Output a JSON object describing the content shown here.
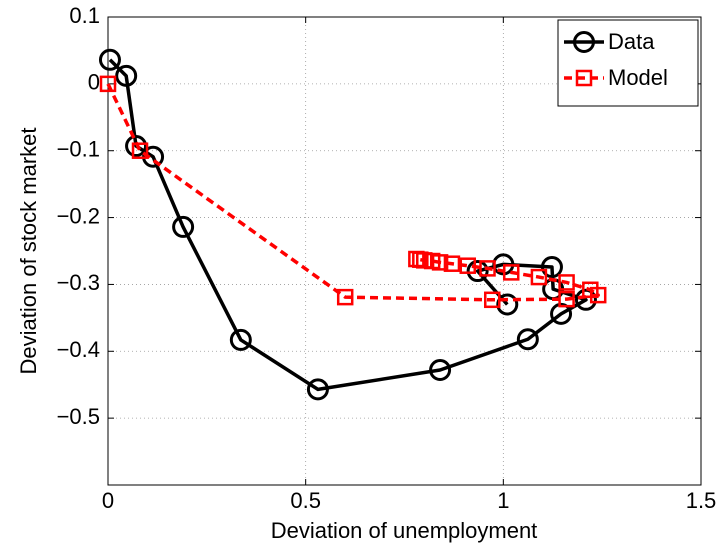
{
  "chart_data": {
    "type": "line",
    "xlabel": "Deviation of unemployment",
    "ylabel": "Deviation of stock market",
    "xlim": [
      0,
      1.5
    ],
    "xticks": [
      0,
      0.5,
      1,
      1.5
    ],
    "ylim": [
      -0.6,
      0.1
    ],
    "yticks": [
      0.1,
      0,
      {
        "value": -0.1,
        "label": "−0.1"
      },
      {
        "value": -0.2,
        "label": "−0.2"
      },
      {
        "value": -0.3,
        "label": "−0.3"
      },
      {
        "value": -0.4,
        "label": "−0.4"
      },
      {
        "value": -0.5,
        "label": "−0.5"
      }
    ],
    "grid": true,
    "legend": "upper right",
    "series": [
      {
        "name": "Data",
        "color": "#000000",
        "marker": "circle",
        "linestyle": "solid",
        "x": [
          0.005,
          0.046,
          0.071,
          0.114,
          0.19,
          0.336,
          0.531,
          0.84,
          1.062,
          1.146,
          1.209,
          1.126,
          1.123,
          1.0,
          0.935,
          1.01
        ],
        "values": [
          0.036,
          0.012,
          -0.093,
          -0.109,
          -0.214,
          -0.383,
          -0.457,
          -0.428,
          -0.382,
          -0.344,
          -0.323,
          -0.307,
          -0.274,
          -0.27,
          -0.28,
          -0.33
        ]
      },
      {
        "name": "Model",
        "color": "#ff0000",
        "marker": "square",
        "linestyle": "dashed",
        "x": [
          0,
          0.081,
          0.6,
          0.972,
          1.16,
          1.24,
          1.22,
          1.16,
          1.09,
          1.02,
          0.96,
          0.91,
          0.87,
          0.84,
          0.82,
          0.8,
          0.79,
          0.78
        ],
        "values": [
          0,
          -0.1,
          -0.319,
          -0.323,
          -0.322,
          -0.316,
          -0.308,
          -0.297,
          -0.289,
          -0.282,
          -0.276,
          -0.272,
          -0.269,
          -0.267,
          -0.265,
          -0.264,
          -0.263,
          -0.262
        ]
      }
    ]
  }
}
